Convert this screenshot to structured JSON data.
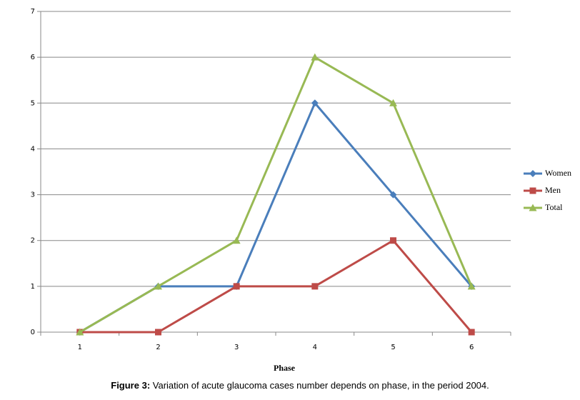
{
  "chart_data": {
    "type": "line",
    "x_label": "Phase",
    "caption_label": "Figure 3:",
    "caption": "Variation of acute glaucoma cases number depends on phase, in the period 2004.",
    "categories": [
      "1",
      "2",
      "3",
      "4",
      "5",
      "6"
    ],
    "series": [
      {
        "name": "Women",
        "color": "#4a7ebb",
        "marker": "diamond",
        "values": [
          0,
          1,
          1,
          5,
          3,
          1
        ]
      },
      {
        "name": "Men",
        "color": "#be4b48",
        "marker": "square",
        "values": [
          0,
          0,
          1,
          1,
          2,
          0
        ]
      },
      {
        "name": "Total",
        "color": "#98b954",
        "marker": "triangle",
        "values": [
          0,
          1,
          2,
          6,
          5,
          1
        ]
      }
    ],
    "ylim": [
      0,
      7
    ],
    "yticks": [
      0,
      1,
      2,
      3,
      4,
      5,
      6,
      7
    ],
    "grid": true,
    "legend": "right"
  }
}
